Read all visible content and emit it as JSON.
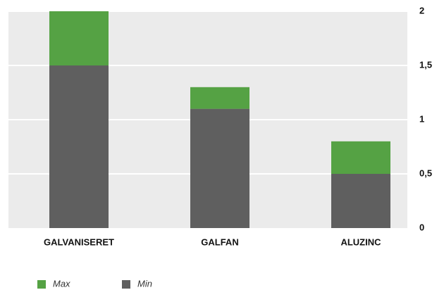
{
  "chart_data": {
    "type": "stacked_bar",
    "categories": [
      "GALVANISERET",
      "GALFAN",
      "ALUZINC"
    ],
    "series": [
      {
        "name": "Min",
        "color": "#5f5f5f",
        "values": [
          1.5,
          1.1,
          0.5
        ]
      },
      {
        "name": "Max",
        "color": "#55a244",
        "values": [
          0.5,
          0.2,
          0.3
        ]
      }
    ],
    "ylim": [
      0,
      2
    ],
    "yticks": [
      0,
      {
        "value": 0.5,
        "label": "0,5"
      },
      1,
      {
        "value": 1.5,
        "label": "1,5"
      },
      2
    ],
    "grid": true
  }
}
